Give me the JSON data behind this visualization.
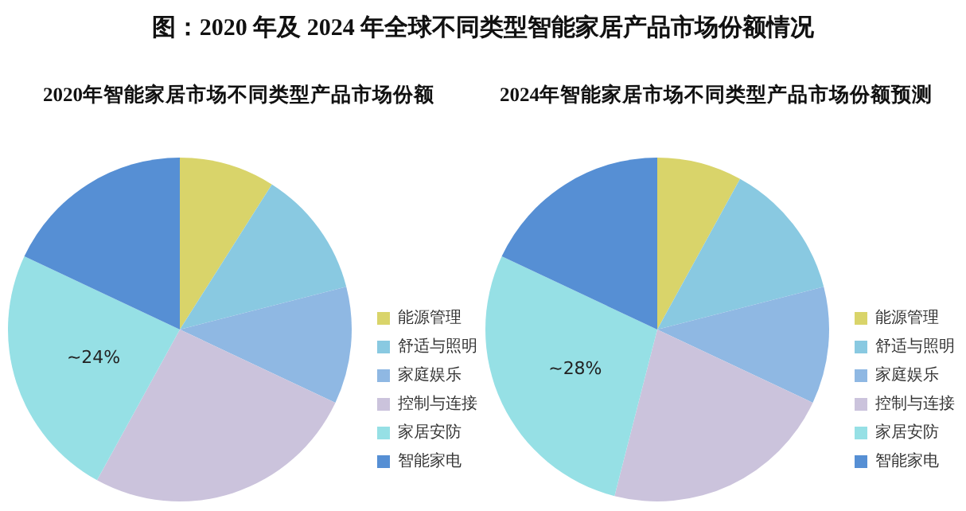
{
  "chart_data": [
    {
      "type": "pie",
      "title": "2020年智能家居市场不同类型产品市场份额",
      "annotations": [
        "图：2020 年及 2024 年全球不同类型智能家居产品市场份额情况"
      ],
      "categories": [
        "能源管理",
        "舒适与照明",
        "家庭娱乐",
        "控制与连接",
        "家居安防",
        "智能家电"
      ],
      "values": [
        9,
        12,
        11,
        26,
        24,
        18
      ],
      "colors": [
        "#d9d46a",
        "#89c9e1",
        "#8fb8e3",
        "#cbc3dc",
        "#96e0e5",
        "#568fd4"
      ],
      "value_labels": [
        null,
        null,
        null,
        null,
        "~24%",
        null
      ],
      "legend": "right"
    },
    {
      "type": "pie",
      "title": "2024年智能家居市场不同类型产品市场份额预测",
      "categories": [
        "能源管理",
        "舒适与照明",
        "家庭娱乐",
        "控制与连接",
        "家居安防",
        "智能家电"
      ],
      "values": [
        8,
        13,
        11,
        22,
        28,
        18
      ],
      "colors": [
        "#d9d46a",
        "#89c9e1",
        "#8fb8e3",
        "#cbc3dc",
        "#96e0e5",
        "#568fd4"
      ],
      "value_labels": [
        null,
        null,
        null,
        null,
        "~28%",
        null
      ],
      "legend": "right"
    }
  ]
}
